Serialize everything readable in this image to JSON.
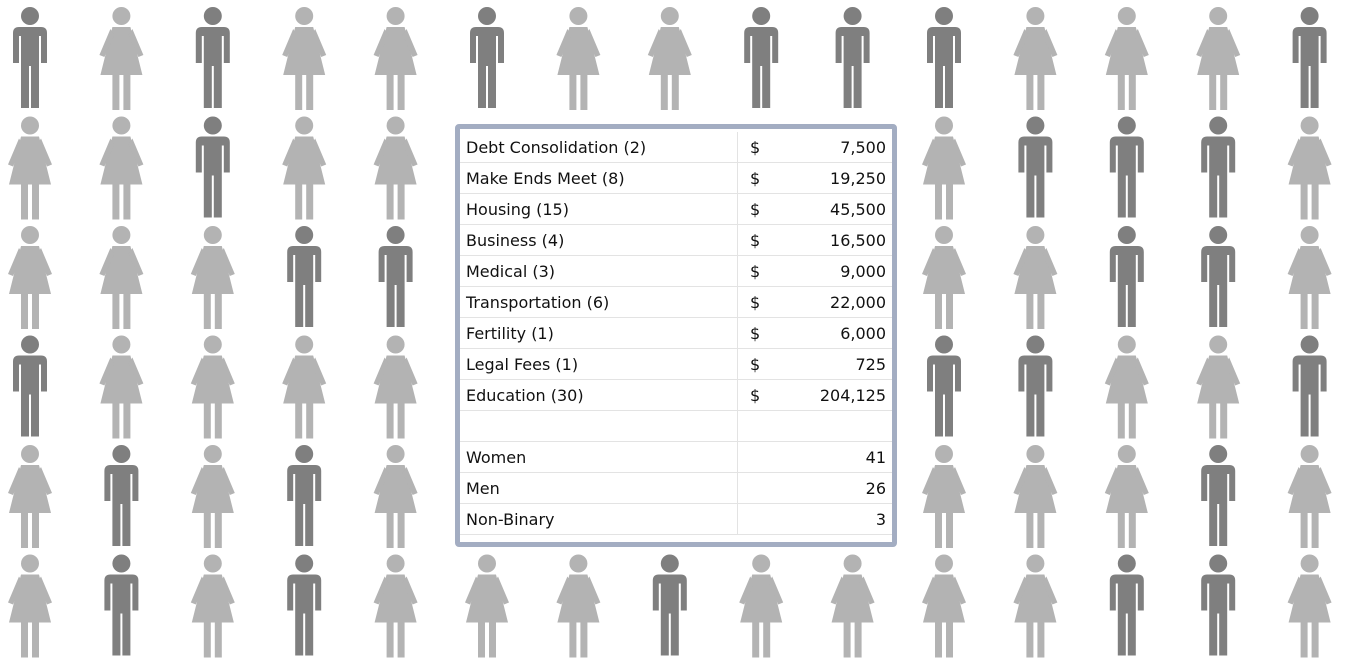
{
  "table": {
    "expenses": [
      [
        "Debt Consolidation (2)",
        "$",
        "7,500"
      ],
      [
        "Make Ends Meet (8)",
        "$",
        "19,250"
      ],
      [
        "Housing (15)",
        "$",
        "45,500"
      ],
      [
        "Business (4)",
        "$",
        "16,500"
      ],
      [
        "Medical (3)",
        "$",
        "9,000"
      ],
      [
        "Transportation (6)",
        "$",
        "22,000"
      ],
      [
        "Fertility (1)",
        "$",
        "6,000"
      ],
      [
        "Legal Fees (1)",
        "$",
        "725"
      ],
      [
        "Education (30)",
        "$",
        "204,125"
      ]
    ],
    "demographics": [
      [
        "Women",
        "41"
      ],
      [
        "Men",
        "26"
      ],
      [
        "Non-Binary",
        "3"
      ]
    ]
  }
}
